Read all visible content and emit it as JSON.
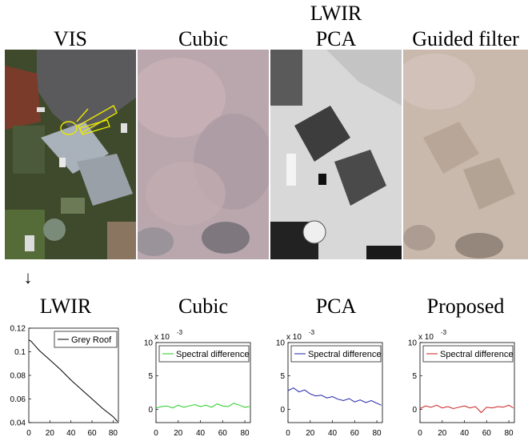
{
  "top_titles": {
    "vis": "VIS",
    "cubic": "Cubic",
    "pca_line1": "LWIR",
    "pca_line2": "PCA",
    "guided": "Guided filter"
  },
  "arrow": "↓",
  "bottom_titles": {
    "lwir": "LWIR",
    "cubic": "Cubic",
    "pca": "PCA",
    "proposed": "Proposed"
  },
  "colors": {
    "grey_roof": "#000000",
    "cubic": "#22cc22",
    "pca": "#2222aa",
    "proposed": "#cc2222",
    "vis_annotation": "#e8e800"
  },
  "chart_data": [
    {
      "type": "line",
      "panel": "lwir",
      "legend": [
        "Grey Roof"
      ],
      "xlim": [
        0,
        85
      ],
      "ylim": [
        0.04,
        0.12
      ],
      "xticks": [
        "0",
        "20",
        "40",
        "60",
        "80"
      ],
      "yticks": [
        "0.04",
        "0.06",
        "0.08",
        "0.1",
        "0.12"
      ],
      "series": [
        {
          "name": "Grey Roof",
          "x": [
            0,
            2,
            5,
            10,
            20,
            30,
            40,
            50,
            60,
            70,
            80,
            84
          ],
          "values": [
            0.11,
            0.109,
            0.106,
            0.101,
            0.093,
            0.085,
            0.076,
            0.068,
            0.06,
            0.052,
            0.045,
            0.041
          ]
        }
      ]
    },
    {
      "type": "line",
      "panel": "cubic",
      "legend": [
        "Spectral difference"
      ],
      "scale_label": "x 10",
      "scale_exp": "-3",
      "xlim": [
        0,
        85
      ],
      "ylim": [
        -2,
        10
      ],
      "xticks": [
        "0",
        "20",
        "40",
        "60",
        "80"
      ],
      "yticks": [
        "0",
        "5",
        "10"
      ],
      "series": [
        {
          "name": "Spectral difference",
          "x": [
            0,
            5,
            10,
            15,
            20,
            25,
            30,
            35,
            40,
            45,
            50,
            55,
            60,
            65,
            70,
            75,
            80,
            84
          ],
          "values": [
            0.2,
            0.4,
            0.5,
            0.2,
            0.6,
            0.3,
            0.5,
            0.7,
            0.4,
            0.6,
            0.3,
            0.8,
            0.5,
            0.4,
            0.9,
            0.6,
            0.3,
            0.4
          ]
        }
      ]
    },
    {
      "type": "line",
      "panel": "pca",
      "legend": [
        "Spectral difference"
      ],
      "scale_label": "x 10",
      "scale_exp": "-3",
      "xlim": [
        0,
        85
      ],
      "ylim": [
        -2,
        10
      ],
      "xticks": [
        "0",
        "20",
        "40",
        "60",
        "80"
      ],
      "yticks": [
        "0",
        "5",
        "10"
      ],
      "series": [
        {
          "name": "Spectral difference",
          "x": [
            0,
            5,
            10,
            15,
            20,
            25,
            30,
            35,
            40,
            45,
            50,
            55,
            60,
            65,
            70,
            75,
            80,
            84
          ],
          "values": [
            2.8,
            3.2,
            2.6,
            2.9,
            2.3,
            2.0,
            2.1,
            1.7,
            1.9,
            1.5,
            1.3,
            1.6,
            1.1,
            1.4,
            1.0,
            1.3,
            0.9,
            0.6
          ]
        }
      ]
    },
    {
      "type": "line",
      "panel": "proposed",
      "legend": [
        "Spectral difference"
      ],
      "scale_label": "x 10",
      "scale_exp": "-3",
      "xlim": [
        0,
        85
      ],
      "ylim": [
        -2,
        10
      ],
      "xticks": [
        "0",
        "20",
        "40",
        "60",
        "80"
      ],
      "yticks": [
        "0",
        "5",
        "10"
      ],
      "series": [
        {
          "name": "Spectral difference",
          "x": [
            0,
            5,
            10,
            15,
            20,
            25,
            30,
            35,
            40,
            45,
            50,
            55,
            60,
            65,
            70,
            75,
            80,
            84
          ],
          "values": [
            0.1,
            0.5,
            0.3,
            0.6,
            0.2,
            0.4,
            0.1,
            0.3,
            0.5,
            0.2,
            0.4,
            -0.5,
            0.3,
            0.2,
            0.4,
            0.3,
            0.6,
            0.2
          ]
        }
      ]
    }
  ]
}
